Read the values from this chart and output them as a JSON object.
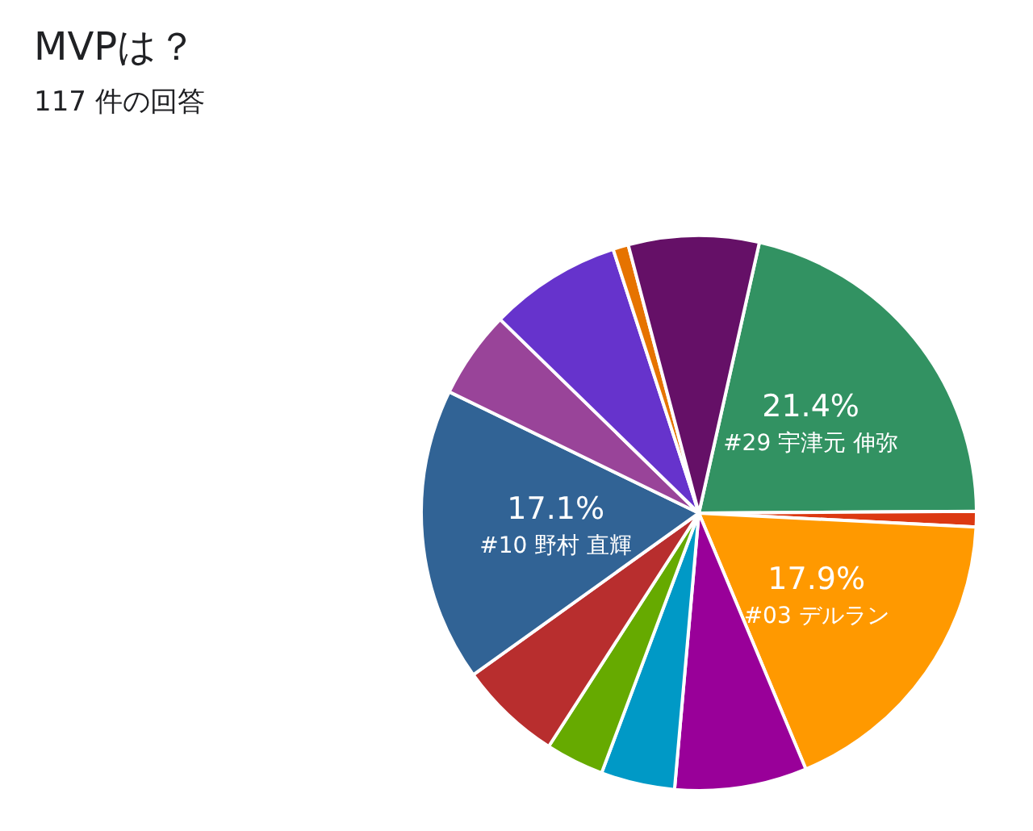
{
  "chart_data": {
    "type": "pie",
    "title": "MVPは？",
    "subtitle": "117 件の回答",
    "categories": [
      "#29 宇津元 伸弥",
      null,
      "#03 デルラン",
      null,
      null,
      null,
      null,
      "#10 野村 直輝",
      null,
      null,
      null,
      null
    ],
    "values": [
      21.4,
      0.9,
      17.9,
      7.7,
      4.3,
      3.4,
      6.0,
      17.1,
      5.1,
      7.7,
      0.9,
      7.6
    ],
    "colors": [
      "#329262",
      "#dc3912",
      "#ff9900",
      "#990099",
      "#0099c6",
      "#66aa00",
      "#b82e2e",
      "#316395",
      "#994499",
      "#6633cc",
      "#e67300",
      "#651067"
    ],
    "value_labels": [
      "21.4%",
      null,
      "17.9%",
      null,
      null,
      null,
      null,
      "17.1%",
      null,
      null,
      null,
      null
    ],
    "legend": false
  }
}
